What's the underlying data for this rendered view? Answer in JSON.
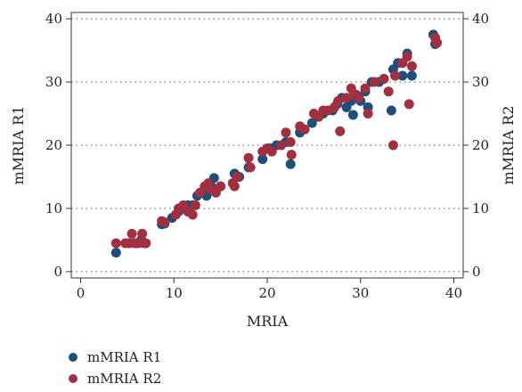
{
  "chart_data": {
    "type": "scatter",
    "xlabel": "MRIA",
    "ylabel_left": "mMRIA R1",
    "ylabel_right": "mMRIA R2",
    "xlim": [
      -1,
      41
    ],
    "ylim": [
      -1,
      41
    ],
    "x_ticks": [
      0,
      10,
      20,
      30,
      40
    ],
    "y_ticks": [
      0,
      10,
      20,
      30,
      40
    ],
    "grid": "horizontal dotted",
    "legend_position": "bottom-left",
    "series": [
      {
        "name": "mMRIA R1",
        "color": "#1f4e79",
        "points": [
          [
            3.8,
            3
          ],
          [
            5.2,
            4.5
          ],
          [
            6.0,
            4.5
          ],
          [
            6.5,
            5
          ],
          [
            8.7,
            7.5
          ],
          [
            9.0,
            7.6
          ],
          [
            9.8,
            8.5
          ],
          [
            10.5,
            9.5
          ],
          [
            11.0,
            10
          ],
          [
            11.5,
            10.5
          ],
          [
            12.0,
            10.5
          ],
          [
            12.5,
            12
          ],
          [
            13.0,
            12.5
          ],
          [
            13.5,
            12
          ],
          [
            14.0,
            13.5
          ],
          [
            14.3,
            14.8
          ],
          [
            15.0,
            13.5
          ],
          [
            16.5,
            15.5
          ],
          [
            17.0,
            15
          ],
          [
            18.0,
            16.5
          ],
          [
            19.5,
            17.8
          ],
          [
            20.3,
            19.5
          ],
          [
            21.0,
            20
          ],
          [
            22.0,
            20.5
          ],
          [
            22.5,
            17
          ],
          [
            23.5,
            22
          ],
          [
            24.0,
            22.5
          ],
          [
            24.8,
            23.5
          ],
          [
            25.5,
            24.5
          ],
          [
            26.0,
            25
          ],
          [
            27.0,
            25.5
          ],
          [
            27.5,
            26.5
          ],
          [
            28.0,
            27.5
          ],
          [
            28.5,
            26
          ],
          [
            29.0,
            27
          ],
          [
            29.5,
            28
          ],
          [
            29.2,
            24.8
          ],
          [
            30.0,
            27
          ],
          [
            30.5,
            28.5
          ],
          [
            30.8,
            26
          ],
          [
            31.2,
            30
          ],
          [
            32.0,
            30
          ],
          [
            32.5,
            30.5
          ],
          [
            33.3,
            25.5
          ],
          [
            33.5,
            32
          ],
          [
            34.0,
            33
          ],
          [
            34.5,
            31
          ],
          [
            35.0,
            34.5
          ],
          [
            35.5,
            31
          ],
          [
            37.8,
            37.5
          ],
          [
            38.0,
            36
          ]
        ]
      },
      {
        "name": "mMRIA R2",
        "color": "#a03040",
        "points": [
          [
            3.8,
            4.5
          ],
          [
            4.8,
            4.5
          ],
          [
            5.2,
            4.5
          ],
          [
            5.5,
            6
          ],
          [
            5.8,
            4.5
          ],
          [
            6.2,
            4.5
          ],
          [
            6.6,
            6
          ],
          [
            6.8,
            4.5
          ],
          [
            7.0,
            4.5
          ],
          [
            8.7,
            8
          ],
          [
            9.0,
            7.8
          ],
          [
            10.2,
            9
          ],
          [
            10.5,
            10
          ],
          [
            11.0,
            10.5
          ],
          [
            11.5,
            9.5
          ],
          [
            12.0,
            9
          ],
          [
            12.3,
            10.5
          ],
          [
            12.8,
            12.5
          ],
          [
            13.3,
            13.5
          ],
          [
            13.7,
            14
          ],
          [
            14.0,
            13
          ],
          [
            14.5,
            12.5
          ],
          [
            15.0,
            13.5
          ],
          [
            16.3,
            14
          ],
          [
            16.5,
            13.5
          ],
          [
            16.8,
            15
          ],
          [
            18.0,
            18
          ],
          [
            18.2,
            16.5
          ],
          [
            19.5,
            19
          ],
          [
            20.0,
            19.5
          ],
          [
            20.5,
            19
          ],
          [
            21.5,
            20
          ],
          [
            22.0,
            22
          ],
          [
            22.5,
            20.5
          ],
          [
            22.6,
            18.5
          ],
          [
            23.5,
            23
          ],
          [
            24.0,
            22.5
          ],
          [
            25.0,
            25
          ],
          [
            25.5,
            24.5
          ],
          [
            26.0,
            25.5
          ],
          [
            26.5,
            25.5
          ],
          [
            27.2,
            26
          ],
          [
            27.6,
            27
          ],
          [
            27.8,
            22.2
          ],
          [
            28.5,
            27.5
          ],
          [
            29.0,
            29
          ],
          [
            29.3,
            28
          ],
          [
            29.8,
            27.5
          ],
          [
            30.5,
            29
          ],
          [
            30.8,
            25
          ],
          [
            31.5,
            30
          ],
          [
            32.5,
            30.5
          ],
          [
            33.0,
            28.5
          ],
          [
            33.5,
            20
          ],
          [
            33.7,
            31
          ],
          [
            34.5,
            33
          ],
          [
            35.0,
            34
          ],
          [
            35.2,
            26.5
          ],
          [
            35.5,
            32.5
          ],
          [
            38.0,
            37
          ],
          [
            38.2,
            36.2
          ]
        ]
      }
    ]
  }
}
